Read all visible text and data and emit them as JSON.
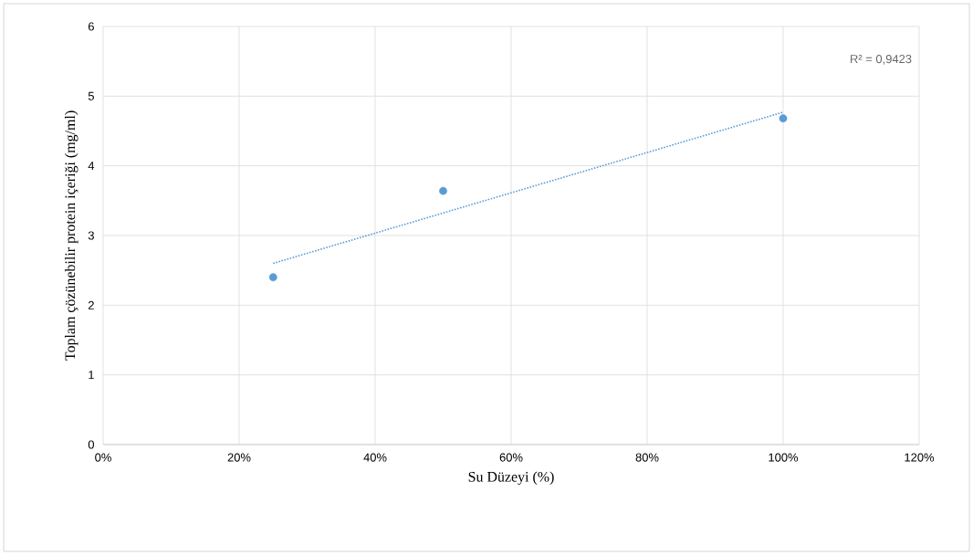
{
  "chart_data": {
    "type": "scatter",
    "xlabel": "Su Düzeyi (%)",
    "ylabel": "Toplam çözünebilir protein içeriği (mg/ml)",
    "x": [
      25,
      50,
      100
    ],
    "series": [
      {
        "color": "#5b9bd5",
        "values": [
          2.4,
          3.64,
          4.68
        ],
        "marker": "circle"
      },
      {
        "type": "line",
        "color": "#5b9bd5",
        "x": [
          25,
          100
        ],
        "values": [
          2.6,
          4.77
        ],
        "line_style": "dotted",
        "marker": "none"
      }
    ],
    "annotations": [
      "R² = 0,9423"
    ],
    "xlim": [
      0,
      120
    ],
    "ylim": [
      0,
      6
    ],
    "xticks": [
      {
        "value": 0,
        "label": "0%"
      },
      {
        "value": 20,
        "label": "20%"
      },
      {
        "value": 40,
        "label": "40%"
      },
      {
        "value": 60,
        "label": "60%"
      },
      {
        "value": 80,
        "label": "80%"
      },
      {
        "value": 100,
        "label": "100%"
      },
      {
        "value": 120,
        "label": "120%"
      }
    ],
    "yticks": [
      0,
      1,
      2,
      3,
      4,
      5,
      6
    ],
    "grid": true
  }
}
